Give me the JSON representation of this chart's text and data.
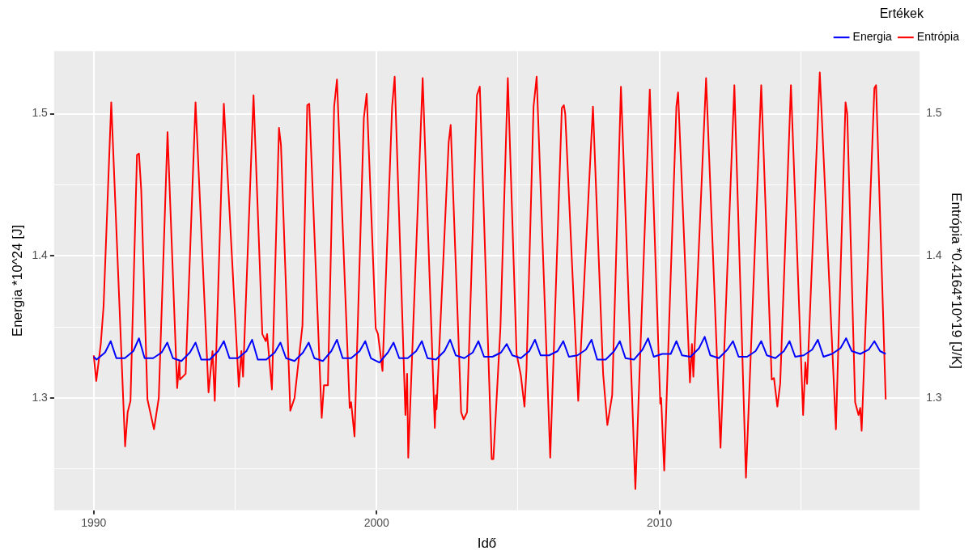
{
  "chart_data": {
    "type": "line",
    "xlabel": "Idő",
    "ylabel": "Energia *10^24 [J]",
    "y2label": "Entrópia *0.4164*10^19 [J/K]",
    "legend_title": "Értékek",
    "legend": "top right",
    "grid": true,
    "marker": "none",
    "line_style": "solid",
    "xlim": [
      1988.6,
      2019.2
    ],
    "xticks": [
      {
        "value": 1990,
        "label": "1990"
      },
      {
        "value": 1995,
        "label": null
      },
      {
        "value": 2000,
        "label": "2000"
      },
      {
        "value": 2005,
        "label": null
      },
      {
        "value": 2010,
        "label": "2010"
      },
      {
        "value": 2015,
        "label": null
      }
    ],
    "ylim": [
      1.221,
      1.544
    ],
    "yticks": [
      {
        "value": 1.25,
        "label": null
      },
      1.3,
      {
        "value": 1.35,
        "label": null
      },
      1.4,
      {
        "value": 1.45,
        "label": null
      },
      1.5
    ],
    "y2lim": [
      1.221,
      1.544
    ],
    "y2ticks": [
      {
        "value": 1.25,
        "label": null
      },
      1.3,
      {
        "value": 1.35,
        "label": null
      },
      1.4,
      {
        "value": 1.45,
        "label": null
      },
      1.5
    ],
    "series": [
      {
        "name": "Energia",
        "color": "#0000ff",
        "x": [
          1990.0,
          1990.1,
          1990.4,
          1990.6,
          1990.8,
          1991.1,
          1991.4,
          1991.6,
          1991.8,
          1992.1,
          1992.4,
          1992.6,
          1992.8,
          1993.1,
          1993.4,
          1993.6,
          1993.8,
          1994.1,
          1994.4,
          1994.6,
          1994.8,
          1995.1,
          1995.4,
          1995.6,
          1995.8,
          1996.1,
          1996.4,
          1996.6,
          1996.8,
          1997.1,
          1997.4,
          1997.6,
          1997.8,
          1998.1,
          1998.4,
          1998.6,
          1998.8,
          1999.1,
          1999.4,
          1999.6,
          1999.8,
          2000.1,
          2000.4,
          2000.6,
          2000.8,
          2001.1,
          2001.4,
          2001.6,
          2001.8,
          2002.1,
          2002.4,
          2002.6,
          2002.8,
          2003.1,
          2003.4,
          2003.6,
          2003.8,
          2004.1,
          2004.4,
          2004.6,
          2004.8,
          2005.1,
          2005.4,
          2005.6,
          2005.8,
          2006.1,
          2006.4,
          2006.6,
          2006.8,
          2007.1,
          2007.4,
          2007.6,
          2007.8,
          2008.1,
          2008.4,
          2008.6,
          2008.8,
          2009.1,
          2009.4,
          2009.6,
          2009.8,
          2010.1,
          2010.4,
          2010.6,
          2010.8,
          2011.1,
          2011.4,
          2011.6,
          2011.8,
          2012.1,
          2012.4,
          2012.6,
          2012.8,
          2013.1,
          2013.4,
          2013.6,
          2013.8,
          2014.1,
          2014.4,
          2014.6,
          2014.8,
          2015.1,
          2015.4,
          2015.6,
          2015.8,
          2016.1,
          2016.4,
          2016.6,
          2016.8,
          2017.1,
          2017.4,
          2017.6,
          2017.8,
          2018.0
        ],
        "values": [
          1.329,
          1.327,
          1.332,
          1.34,
          1.328,
          1.328,
          1.333,
          1.342,
          1.328,
          1.328,
          1.332,
          1.339,
          1.328,
          1.326,
          1.332,
          1.339,
          1.327,
          1.327,
          1.333,
          1.34,
          1.328,
          1.328,
          1.333,
          1.341,
          1.327,
          1.327,
          1.332,
          1.339,
          1.328,
          1.326,
          1.332,
          1.339,
          1.328,
          1.326,
          1.333,
          1.341,
          1.328,
          1.328,
          1.333,
          1.34,
          1.328,
          1.325,
          1.332,
          1.339,
          1.328,
          1.328,
          1.333,
          1.34,
          1.328,
          1.327,
          1.333,
          1.341,
          1.33,
          1.328,
          1.332,
          1.34,
          1.329,
          1.329,
          1.332,
          1.338,
          1.33,
          1.328,
          1.333,
          1.341,
          1.33,
          1.33,
          1.333,
          1.34,
          1.329,
          1.33,
          1.334,
          1.341,
          1.327,
          1.327,
          1.333,
          1.34,
          1.328,
          1.327,
          1.334,
          1.342,
          1.329,
          1.331,
          1.331,
          1.34,
          1.33,
          1.329,
          1.335,
          1.343,
          1.33,
          1.328,
          1.334,
          1.34,
          1.329,
          1.329,
          1.333,
          1.34,
          1.33,
          1.328,
          1.333,
          1.34,
          1.329,
          1.33,
          1.334,
          1.341,
          1.329,
          1.331,
          1.335,
          1.342,
          1.333,
          1.331,
          1.334,
          1.34,
          1.333,
          1.331
        ]
      },
      {
        "name": "Entrópia",
        "color": "#ff0000",
        "axis": "y2",
        "x": [
          1990.0,
          1990.09,
          1990.25,
          1990.35,
          1990.62,
          1991.11,
          1991.2,
          1991.3,
          1991.53,
          1991.6,
          1991.68,
          1991.9,
          1992.13,
          1992.3,
          1992.61,
          1992.95,
          1993.03,
          1993.05,
          1993.25,
          1993.6,
          1994.06,
          1994.2,
          1994.28,
          1994.6,
          1995.13,
          1995.22,
          1995.28,
          1995.65,
          1995.96,
          1996.08,
          1996.13,
          1996.3,
          1996.55,
          1996.62,
          1996.95,
          1997.1,
          1997.38,
          1997.55,
          1997.62,
          1998.06,
          1998.14,
          1998.28,
          1998.5,
          1998.6,
          1999.05,
          1999.1,
          1999.22,
          1999.55,
          1999.65,
          1999.97,
          2000.05,
          2000.21,
          2000.55,
          2000.64,
          2001.02,
          2001.08,
          2001.12,
          2001.63,
          2002.06,
          2002.1,
          2002.12,
          2002.55,
          2002.62,
          2002.99,
          2003.08,
          2003.2,
          2003.55,
          2003.65,
          2004.07,
          2004.13,
          2004.38,
          2004.64,
          2004.95,
          2005.0,
          2005.1,
          2005.23,
          2005.3,
          2005.55,
          2005.66,
          2006.14,
          2006.55,
          2006.62,
          2006.67,
          2007.13,
          2007.65,
          2008.01,
          2008.16,
          2008.33,
          2008.64,
          2009.15,
          2009.66,
          2010.03,
          2010.06,
          2010.17,
          2010.6,
          2010.66,
          2011.08,
          2011.15,
          2011.2,
          2011.65,
          2012.16,
          2012.65,
          2013.06,
          2013.6,
          2013.97,
          2014.05,
          2014.17,
          2014.27,
          2014.65,
          2015.08,
          2015.16,
          2015.22,
          2015.67,
          2016.24,
          2016.58,
          2016.64,
          2016.92,
          2017.04,
          2017.1,
          2017.15,
          2017.6,
          2017.66,
          2018.0
        ],
        "values": [
          1.33,
          1.312,
          1.338,
          1.365,
          1.508,
          1.266,
          1.29,
          1.298,
          1.471,
          1.472,
          1.446,
          1.299,
          1.278,
          1.3,
          1.487,
          1.307,
          1.326,
          1.313,
          1.317,
          1.508,
          1.304,
          1.333,
          1.298,
          1.507,
          1.308,
          1.333,
          1.315,
          1.513,
          1.345,
          1.34,
          1.345,
          1.306,
          1.49,
          1.478,
          1.291,
          1.3,
          1.351,
          1.506,
          1.507,
          1.286,
          1.309,
          1.309,
          1.505,
          1.524,
          1.293,
          1.297,
          1.273,
          1.497,
          1.514,
          1.349,
          1.345,
          1.319,
          1.505,
          1.526,
          1.288,
          1.317,
          1.258,
          1.525,
          1.279,
          1.302,
          1.292,
          1.48,
          1.492,
          1.29,
          1.285,
          1.29,
          1.513,
          1.519,
          1.257,
          1.257,
          1.35,
          1.525,
          1.331,
          1.326,
          1.316,
          1.294,
          1.32,
          1.505,
          1.526,
          1.258,
          1.504,
          1.506,
          1.5,
          1.298,
          1.505,
          1.317,
          1.281,
          1.302,
          1.519,
          1.236,
          1.517,
          1.296,
          1.3,
          1.249,
          1.505,
          1.515,
          1.311,
          1.338,
          1.315,
          1.525,
          1.265,
          1.52,
          1.244,
          1.52,
          1.313,
          1.314,
          1.294,
          1.31,
          1.52,
          1.288,
          1.325,
          1.31,
          1.529,
          1.278,
          1.508,
          1.5,
          1.297,
          1.288,
          1.293,
          1.277,
          1.518,
          1.52,
          1.299
        ]
      }
    ]
  }
}
